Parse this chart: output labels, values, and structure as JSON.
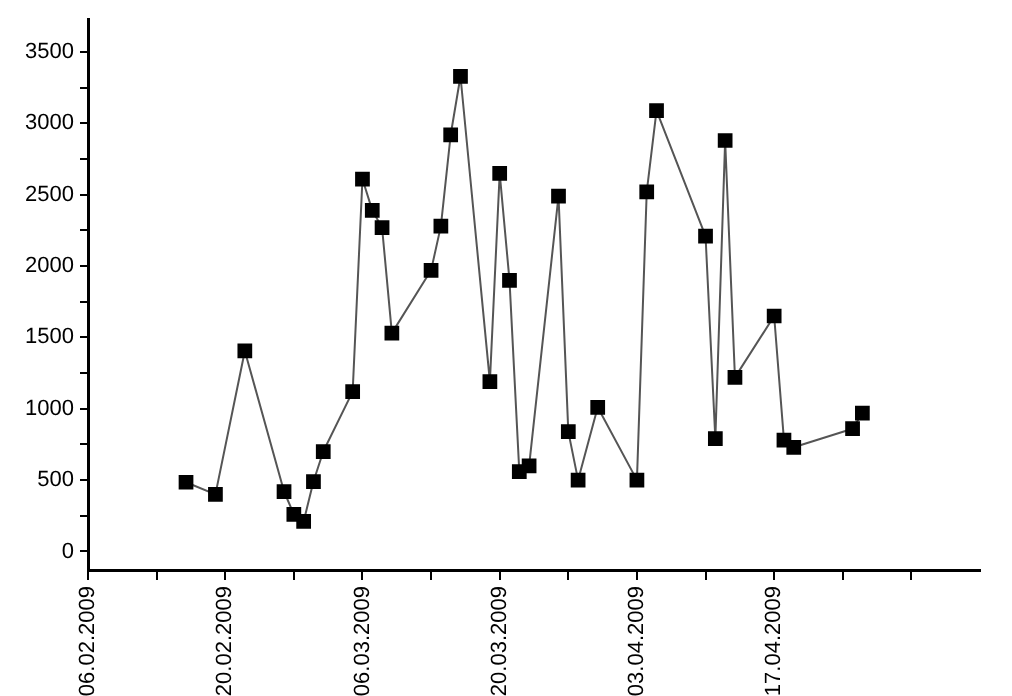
{
  "chart_data": {
    "type": "line",
    "marker": "square",
    "grid": false,
    "legend": false,
    "x": [
      "2009-02-16",
      "2009-02-19",
      "2009-02-22",
      "2009-02-26",
      "2009-02-27",
      "2009-02-28",
      "2009-03-01",
      "2009-03-02",
      "2009-03-05",
      "2009-03-06",
      "2009-03-07",
      "2009-03-08",
      "2009-03-09",
      "2009-03-13",
      "2009-03-14",
      "2009-03-15",
      "2009-03-16",
      "2009-03-19",
      "2009-03-20",
      "2009-03-21",
      "2009-03-22",
      "2009-03-23",
      "2009-03-26",
      "2009-03-27",
      "2009-03-28",
      "2009-03-30",
      "2009-04-03",
      "2009-04-04",
      "2009-04-05",
      "2009-04-10",
      "2009-04-11",
      "2009-04-12",
      "2009-04-13",
      "2009-04-17",
      "2009-04-18",
      "2009-04-19",
      "2009-04-25",
      "2009-04-26"
    ],
    "series": [
      {
        "color": "#000000",
        "values": [
          485,
          400,
          1405,
          420,
          260,
          210,
          490,
          700,
          1120,
          2610,
          2390,
          2270,
          1530,
          1970,
          2280,
          2920,
          3330,
          1190,
          2650,
          1900,
          560,
          600,
          2490,
          840,
          500,
          1010,
          500,
          2520,
          3090,
          2210,
          790,
          2880,
          1220,
          1650,
          780,
          730,
          860,
          970
        ]
      }
    ],
    "xlim": [
      "2009-02-06",
      "2009-05-08"
    ],
    "xticks": [
      {
        "value": "2009-02-06",
        "label": "06.02.2009"
      },
      {
        "value": "2009-02-13",
        "label": null
      },
      {
        "value": "2009-02-20",
        "label": "20.02.2009"
      },
      {
        "value": "2009-02-27",
        "label": null
      },
      {
        "value": "2009-03-06",
        "label": "06.03.2009"
      },
      {
        "value": "2009-03-13",
        "label": null
      },
      {
        "value": "2009-03-20",
        "label": "20.03.2009"
      },
      {
        "value": "2009-03-27",
        "label": null
      },
      {
        "value": "2009-04-03",
        "label": "03.04.2009"
      },
      {
        "value": "2009-04-10",
        "label": null
      },
      {
        "value": "2009-04-17",
        "label": "17.04.2009"
      },
      {
        "value": "2009-04-24",
        "label": null
      },
      {
        "value": "2009-05-01",
        "label": null
      }
    ],
    "ylim": [
      -130,
      3730
    ],
    "yticks": [
      0,
      {
        "value": 250,
        "label": null
      },
      500,
      {
        "value": 750,
        "label": null
      },
      1000,
      {
        "value": 1250,
        "label": null
      },
      1500,
      {
        "value": 1750,
        "label": null
      },
      2000,
      {
        "value": 2250,
        "label": null
      },
      2500,
      {
        "value": 2750,
        "label": null
      },
      3000,
      {
        "value": 3250,
        "label": null
      },
      3500
    ]
  }
}
